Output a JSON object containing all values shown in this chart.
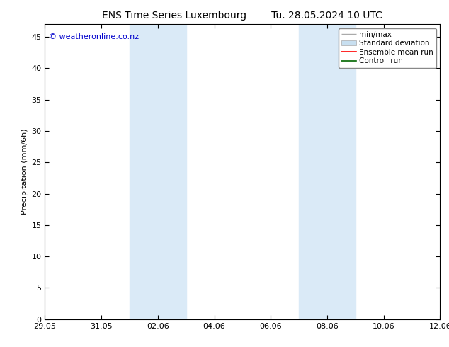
{
  "title_left": "ENS Time Series Luxembourg",
  "title_right": "Tu. 28.05.2024 10 UTC",
  "ylabel": "Precipitation (mm/6h)",
  "watermark": "© weatheronline.co.nz",
  "watermark_color": "#0000cc",
  "ylim": [
    0,
    47
  ],
  "yticks": [
    0,
    5,
    10,
    15,
    20,
    25,
    30,
    35,
    40,
    45
  ],
  "xlim": [
    0,
    14
  ],
  "x_tick_labels": [
    "29.05",
    "31.05",
    "02.06",
    "04.06",
    "06.06",
    "08.06",
    "10.06",
    "12.06"
  ],
  "x_tick_positions": [
    0,
    2,
    4,
    6,
    8,
    10,
    12,
    14
  ],
  "shaded_bands": [
    {
      "x_start": 3.0,
      "x_end": 5.0
    },
    {
      "x_start": 9.0,
      "x_end": 11.0
    }
  ],
  "shaded_color": "#daeaf7",
  "background_color": "#ffffff",
  "plot_bg_color": "#ffffff",
  "legend_labels": [
    "min/max",
    "Standard deviation",
    "Ensemble mean run",
    "Controll run"
  ],
  "minmax_color": "#aaaaaa",
  "std_color": "#c8dff0",
  "ensemble_color": "#ff0000",
  "control_color": "#006600",
  "title_fontsize": 10,
  "label_fontsize": 8,
  "tick_fontsize": 8,
  "legend_fontsize": 7.5,
  "watermark_fontsize": 8
}
